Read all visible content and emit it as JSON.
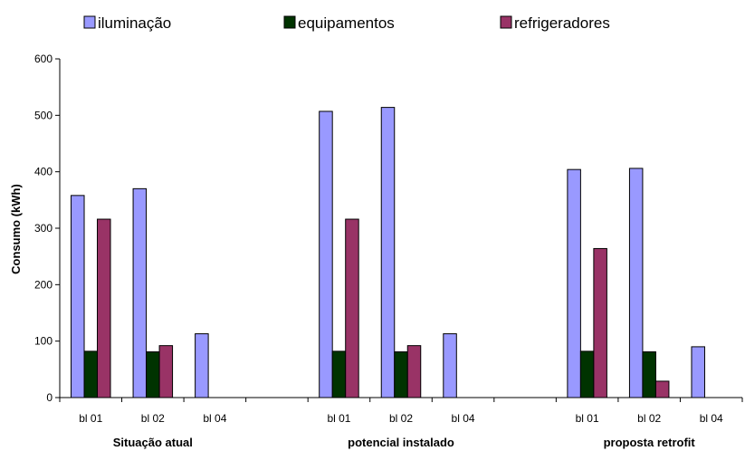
{
  "chart_data": {
    "type": "bar",
    "title": "",
    "ylabel": "Consumo (kWh)",
    "xlabel": "",
    "ylim": [
      0,
      600
    ],
    "yticks": [
      "0",
      "100",
      "200",
      "300",
      "400",
      "500",
      "600"
    ],
    "grid": false,
    "legend_position": "top",
    "groups": [
      {
        "label": "Situação atual",
        "categories": [
          "bl 01",
          "bl 02",
          "bl 04"
        ]
      },
      {
        "label": "potencial instalado",
        "categories": [
          "bl 01",
          "bl 02",
          "bl 04"
        ]
      },
      {
        "label": "proposta retrofit",
        "categories": [
          "bl 01",
          "bl 02",
          "bl 04"
        ]
      }
    ],
    "categories": [
      "bl 01",
      "bl 02",
      "bl 04",
      "bl 01",
      "bl 02",
      "bl 04",
      "bl 01",
      "bl 02",
      "bl 04"
    ],
    "series": [
      {
        "name": "iluminação",
        "color": "#9999ff",
        "values": [
          358,
          370,
          113,
          507,
          514,
          113,
          404,
          406,
          90
        ]
      },
      {
        "name": "equipamentos",
        "color": "#003300",
        "values": [
          82,
          81,
          0,
          82,
          81,
          0,
          82,
          81,
          0
        ]
      },
      {
        "name": "refrigeradores",
        "color": "#993366",
        "values": [
          316,
          92,
          0,
          316,
          92,
          0,
          264,
          29,
          0
        ]
      }
    ]
  }
}
